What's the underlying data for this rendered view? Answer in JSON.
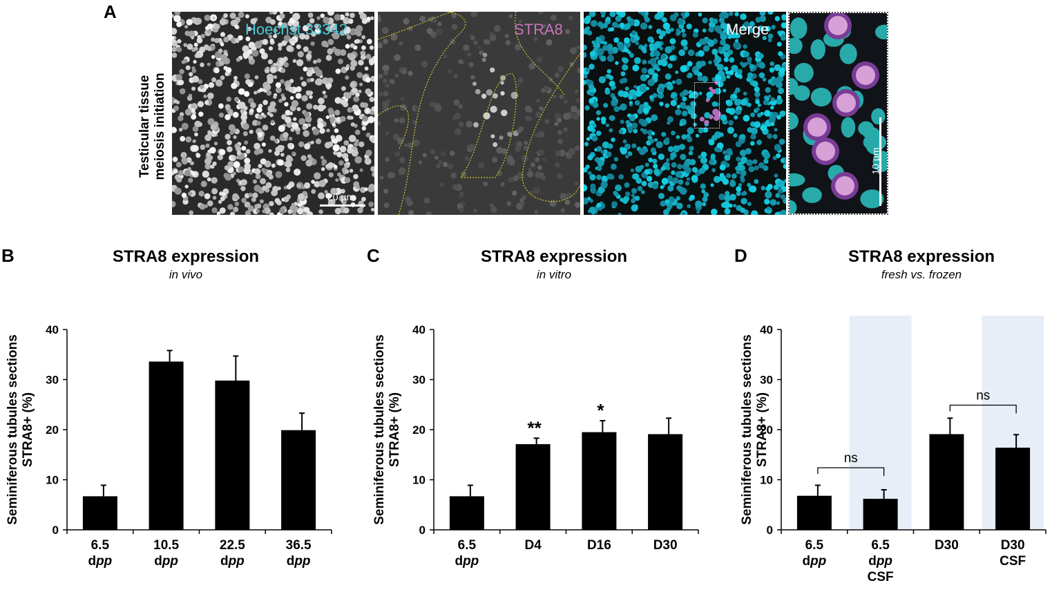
{
  "panelA": {
    "letter": "A",
    "row_label_line1": "Testicular tissue",
    "row_label_line2": "meiosis initiation",
    "images": [
      {
        "label": "Hoechst 33342",
        "label_color": "#4ec8d6",
        "scale_bar": "20 µm"
      },
      {
        "label": "STRA8",
        "label_color": "#c676bd",
        "outline_color": "#d6cf2a"
      },
      {
        "label": "Merge",
        "label_color": "#ffffff"
      },
      {
        "label": "",
        "scale_bar": "10 µm"
      }
    ]
  },
  "chart_data": [
    {
      "panel": "B",
      "type": "bar",
      "title": "STRA8 expression",
      "subtitle": "in vivo",
      "ylabel_line1": "Seminiferous tubules sections",
      "ylabel_line2": "STRA8+ (%)",
      "ylim": [
        0,
        40
      ],
      "yticks": [
        0,
        10,
        20,
        30,
        40
      ],
      "categories": [
        [
          "6.5",
          "dpp"
        ],
        [
          "10.5",
          "dpp"
        ],
        [
          "22.5",
          "dpp"
        ],
        [
          "36.5",
          "dpp"
        ]
      ],
      "values": [
        6.7,
        33.6,
        29.8,
        19.9
      ],
      "errors": [
        2.2,
        2.2,
        4.9,
        3.4
      ],
      "significance": [
        "",
        "",
        "",
        ""
      ],
      "shaded": [
        false,
        false,
        false,
        false
      ],
      "comparisons": []
    },
    {
      "panel": "C",
      "type": "bar",
      "title": "STRA8 expression",
      "subtitle": "in vitro",
      "ylabel_line1": "Seminiferous tubules sections",
      "ylabel_line2": "STRA8+ (%)",
      "ylim": [
        0,
        40
      ],
      "yticks": [
        0,
        10,
        20,
        30,
        40
      ],
      "categories": [
        [
          "6.5",
          "dpp"
        ],
        [
          "D4"
        ],
        [
          "D16"
        ],
        [
          "D30"
        ]
      ],
      "values": [
        6.7,
        17.1,
        19.5,
        19.1
      ],
      "errors": [
        2.2,
        1.2,
        2.3,
        3.2
      ],
      "significance": [
        "",
        "**",
        "*",
        ""
      ],
      "shaded": [
        false,
        false,
        false,
        false
      ],
      "comparisons": []
    },
    {
      "panel": "D",
      "type": "bar",
      "title": "STRA8 expression",
      "subtitle": "fresh vs. frozen",
      "ylabel_line1": "Seminiferous tubules sections",
      "ylabel_line2": "STRA8+ (%)",
      "ylim": [
        0,
        40
      ],
      "yticks": [
        0,
        10,
        20,
        30,
        40
      ],
      "categories": [
        [
          "6.5",
          "dpp"
        ],
        [
          "6.5",
          "dpp",
          "CSF"
        ],
        [
          "D30"
        ],
        [
          "D30",
          "CSF"
        ]
      ],
      "values": [
        6.8,
        6.2,
        19.1,
        16.4
      ],
      "errors": [
        2.1,
        1.8,
        3.2,
        2.6
      ],
      "significance": [
        "",
        "",
        "",
        ""
      ],
      "shaded": [
        false,
        true,
        false,
        true
      ],
      "shade_color": "#e8eef7",
      "comparisons": [
        {
          "from": 0,
          "to": 1,
          "label": "ns",
          "y": 12.4
        },
        {
          "from": 2,
          "to": 3,
          "label": "ns",
          "y": 24.9
        }
      ]
    }
  ]
}
